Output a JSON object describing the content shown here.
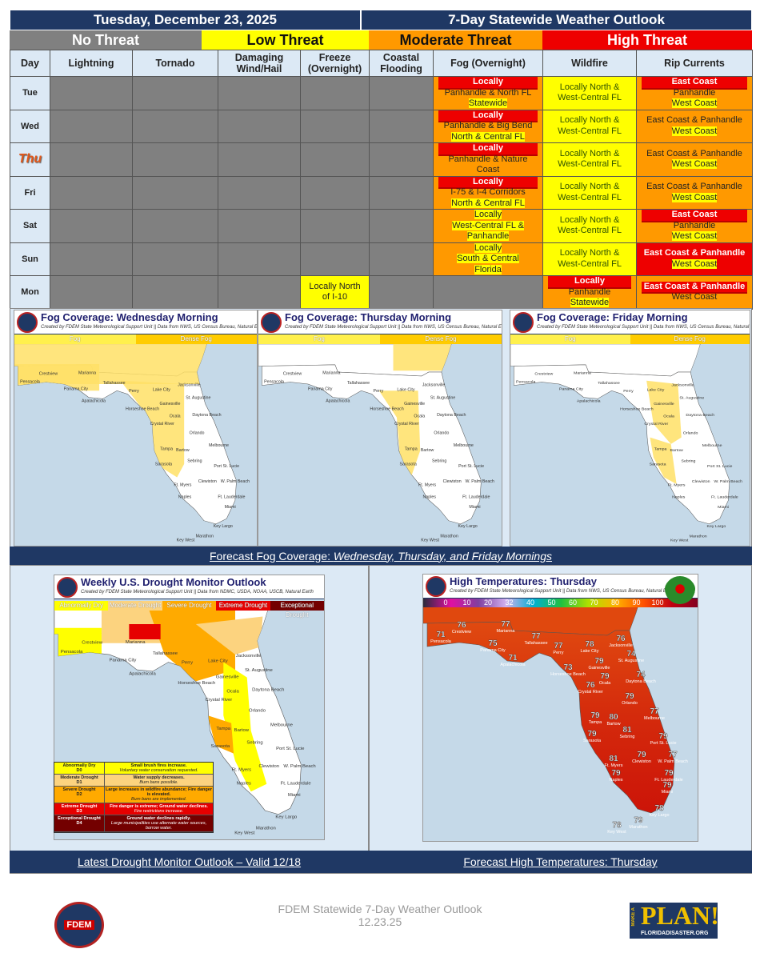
{
  "header": {
    "date": "Tuesday, December 23, 2025",
    "title": "7-Day Statewide Weather Outlook"
  },
  "threat_levels": [
    {
      "label": "No Threat",
      "color": "#808080"
    },
    {
      "label": "Low Threat",
      "color": "#ffff00"
    },
    {
      "label": "Moderate Threat",
      "color": "#ff9900"
    },
    {
      "label": "High Threat",
      "color": "#ee0000"
    }
  ],
  "columns": [
    "Day",
    "Lightning",
    "Tornado",
    "Damaging Wind/Hail",
    "Freeze (Overnight)",
    "Coastal Flooding",
    "Fog (Overnight)",
    "Wildfire",
    "Rip Currents"
  ],
  "rows": [
    {
      "day": "Tue",
      "freeze": null,
      "fog": {
        "level": "o",
        "lines": [
          [
            "red",
            "Locally"
          ],
          [
            "plain",
            "Panhandle & North FL"
          ],
          [
            "hl",
            "Statewide"
          ]
        ]
      },
      "wildfire": {
        "level": "y",
        "lines": [
          [
            "wf",
            "Locally North &"
          ],
          [
            "wf",
            "West-Central FL"
          ]
        ]
      },
      "rip": {
        "level": "o",
        "lines": [
          [
            "red",
            "East Coast"
          ],
          [
            "plain",
            "Panhandle"
          ],
          [
            "hl",
            "West Coast"
          ]
        ]
      }
    },
    {
      "day": "Wed",
      "freeze": null,
      "fog": {
        "level": "o",
        "lines": [
          [
            "red",
            "Locally"
          ],
          [
            "plain",
            "Panhandle & Big Bend"
          ],
          [
            "hl",
            "North & Central FL"
          ]
        ]
      },
      "wildfire": {
        "level": "y",
        "lines": [
          [
            "wf",
            "Locally North &"
          ],
          [
            "wf",
            "West-Central FL"
          ]
        ]
      },
      "rip": {
        "level": "o",
        "lines": [
          [
            "plain",
            "East Coast & Panhandle"
          ],
          [
            "hl",
            "West Coast"
          ]
        ]
      }
    },
    {
      "day": "Thu",
      "freeze": null,
      "fog": {
        "level": "o",
        "lines": [
          [
            "red",
            "Locally"
          ],
          [
            "plain",
            "Panhandle & Nature"
          ],
          [
            "plain",
            "Coast"
          ]
        ]
      },
      "wildfire": {
        "level": "y",
        "lines": [
          [
            "wf",
            "Locally North &"
          ],
          [
            "wf",
            "West-Central FL"
          ]
        ]
      },
      "rip": {
        "level": "o",
        "lines": [
          [
            "plain",
            "East Coast & Panhandle"
          ],
          [
            "hl",
            "West Coast"
          ]
        ]
      }
    },
    {
      "day": "Fri",
      "freeze": null,
      "fog": {
        "level": "o",
        "lines": [
          [
            "red",
            "Locally"
          ],
          [
            "plain",
            "I-75 & I-4 Corridors"
          ],
          [
            "hl",
            "North & Central FL"
          ]
        ]
      },
      "wildfire": {
        "level": "y",
        "lines": [
          [
            "wf",
            "Locally North &"
          ],
          [
            "wf",
            "West-Central FL"
          ]
        ]
      },
      "rip": {
        "level": "o",
        "lines": [
          [
            "plain",
            "East Coast & Panhandle"
          ],
          [
            "hl",
            "West Coast"
          ]
        ]
      }
    },
    {
      "day": "Sat",
      "freeze": null,
      "fog": {
        "level": "o",
        "lines": [
          [
            "hl",
            "Locally"
          ],
          [
            "hl",
            "West-Central FL &"
          ],
          [
            "hl",
            "Panhandle"
          ]
        ]
      },
      "wildfire": {
        "level": "y",
        "lines": [
          [
            "wf",
            "Locally North &"
          ],
          [
            "wf",
            "West-Central FL"
          ]
        ]
      },
      "rip": {
        "level": "o",
        "lines": [
          [
            "red",
            "East Coast"
          ],
          [
            "plain",
            "Panhandle"
          ],
          [
            "hl",
            "West Coast"
          ]
        ]
      }
    },
    {
      "day": "Sun",
      "freeze": null,
      "fog": {
        "level": "o",
        "lines": [
          [
            "hl",
            "Locally"
          ],
          [
            "hl",
            "South & Central"
          ],
          [
            "hl",
            "Florida"
          ]
        ]
      },
      "wildfire": {
        "level": "y",
        "lines": [
          [
            "wf",
            "Locally North &"
          ],
          [
            "wf",
            "West-Central FL"
          ]
        ]
      },
      "rip": {
        "level": "r",
        "lines": [
          [
            "wb",
            "East Coast & Panhandle"
          ],
          [
            "hl",
            "West Coast"
          ]
        ]
      }
    },
    {
      "day": "Mon",
      "freeze": {
        "level": "y",
        "lines": [
          [
            "plain",
            "Locally North"
          ],
          [
            "plain",
            "of I-10"
          ]
        ]
      },
      "fog": null,
      "wildfire": {
        "level": "o",
        "lines": [
          [
            "red",
            "Locally"
          ],
          [
            "plain",
            "Panhandle"
          ],
          [
            "hl",
            "Statewide"
          ]
        ]
      },
      "rip": {
        "level": "o",
        "lines": [
          [
            "red",
            "East Coast & Panhandle"
          ],
          [
            "plain",
            "West Coast"
          ]
        ]
      }
    }
  ],
  "credit_nws": "Created by FDEM State Meteorological Support Unit || Data from NWS, US Census Bureau, Natural Earth",
  "fog_maps": [
    {
      "title": "Fog Coverage: Wednesday Morning",
      "coverage": "wed"
    },
    {
      "title": "Fog Coverage: Thursday Morning",
      "coverage": "thu"
    },
    {
      "title": "Fog Coverage: Friday Morning",
      "coverage": "fri"
    }
  ],
  "fog_legend": [
    "Fog",
    "Dense Fog"
  ],
  "fog_caption": {
    "prefix": "Forecast Fog Coverage: ",
    "days": "Wednesday, Thursday, and Friday Mornings"
  },
  "drought": {
    "title": "Weekly U.S. Drought Monitor Outlook",
    "credit": "Created by FDEM State Meteorological Support Unit || Data from NDMC, USDA, NOAA, USCB, Natural Earth",
    "legend": [
      {
        "label": "Abnormally Dry",
        "code": "D0",
        "color": "#ffff00",
        "impact": "Small brush fires increase.",
        "note": "Voluntary water conservation requested."
      },
      {
        "label": "Moderate Drought",
        "code": "D1",
        "color": "#fcd37f",
        "impact": "Water supply decreases.",
        "note": "Burn bans possible."
      },
      {
        "label": "Severe Drought",
        "code": "D2",
        "color": "#ffaa00",
        "impact": "Large increases in wildfire abundance; Fire danger is elevated.",
        "note": "Burn bans are implemented."
      },
      {
        "label": "Extreme Drought",
        "code": "D3",
        "color": "#e60000",
        "impact": "Fire danger is extreme; Ground water declines.",
        "note": "Fire restrictions increase."
      },
      {
        "label": "Exceptional Drought",
        "code": "D4",
        "color": "#730000",
        "impact": "Ground water declines rapidly.",
        "note": "Large municipalities use alternate water sources, borrow water."
      }
    ],
    "caption": "Latest Drought Monitor Outlook – Valid 12/18"
  },
  "temps": {
    "title": "High Temperatures: Thursday",
    "scale": [
      "0",
      "10",
      "20",
      "32",
      "40",
      "50",
      "60",
      "70",
      "80",
      "90",
      "100"
    ],
    "caption": "Forecast High Temperatures: Thursday",
    "cities": [
      {
        "city": "Pensacola",
        "temp": 71
      },
      {
        "city": "Crestview",
        "temp": 76
      },
      {
        "city": "Marianna",
        "temp": 77
      },
      {
        "city": "Tallahassee",
        "temp": 77
      },
      {
        "city": "Panama City",
        "temp": 75
      },
      {
        "city": "Apalachicola",
        "temp": 71
      },
      {
        "city": "Perry",
        "temp": 77
      },
      {
        "city": "Lake City",
        "temp": 78
      },
      {
        "city": "Jacksonville",
        "temp": 76
      },
      {
        "city": "St. Augustine",
        "temp": 74
      },
      {
        "city": "Gainesville",
        "temp": 79
      },
      {
        "city": "Horseshoe Beach",
        "temp": 73
      },
      {
        "city": "Ocala",
        "temp": 79
      },
      {
        "city": "Daytona Beach",
        "temp": 74
      },
      {
        "city": "Crystal River",
        "temp": 76
      },
      {
        "city": "Orlando",
        "temp": 79
      },
      {
        "city": "Melbourne",
        "temp": 77
      },
      {
        "city": "Tampa",
        "temp": 79
      },
      {
        "city": "Bartow",
        "temp": 80
      },
      {
        "city": "Sebring",
        "temp": 81
      },
      {
        "city": "Sarasota",
        "temp": 79
      },
      {
        "city": "Port St. Lucie",
        "temp": 79
      },
      {
        "city": "Ft. Myers",
        "temp": 81
      },
      {
        "city": "Clewiston",
        "temp": 79
      },
      {
        "city": "W. Palm Beach",
        "temp": 77
      },
      {
        "city": "Naples",
        "temp": 79
      },
      {
        "city": "Ft. Lauderdale",
        "temp": 79
      },
      {
        "city": "Miami",
        "temp": 79
      },
      {
        "city": "Key Largo",
        "temp": 78
      },
      {
        "city": "Marathon",
        "temp": 79
      },
      {
        "city": "Key West",
        "temp": 78
      }
    ]
  },
  "footer": {
    "line1": "FDEM Statewide 7-Day Weather Outlook",
    "line2": "12.23.25",
    "logo_left": "FDEM",
    "logo_right": {
      "make_a": "MAKE A",
      "plan": "PLAN!",
      "url": "FLORIDADISASTER.ORG"
    }
  }
}
